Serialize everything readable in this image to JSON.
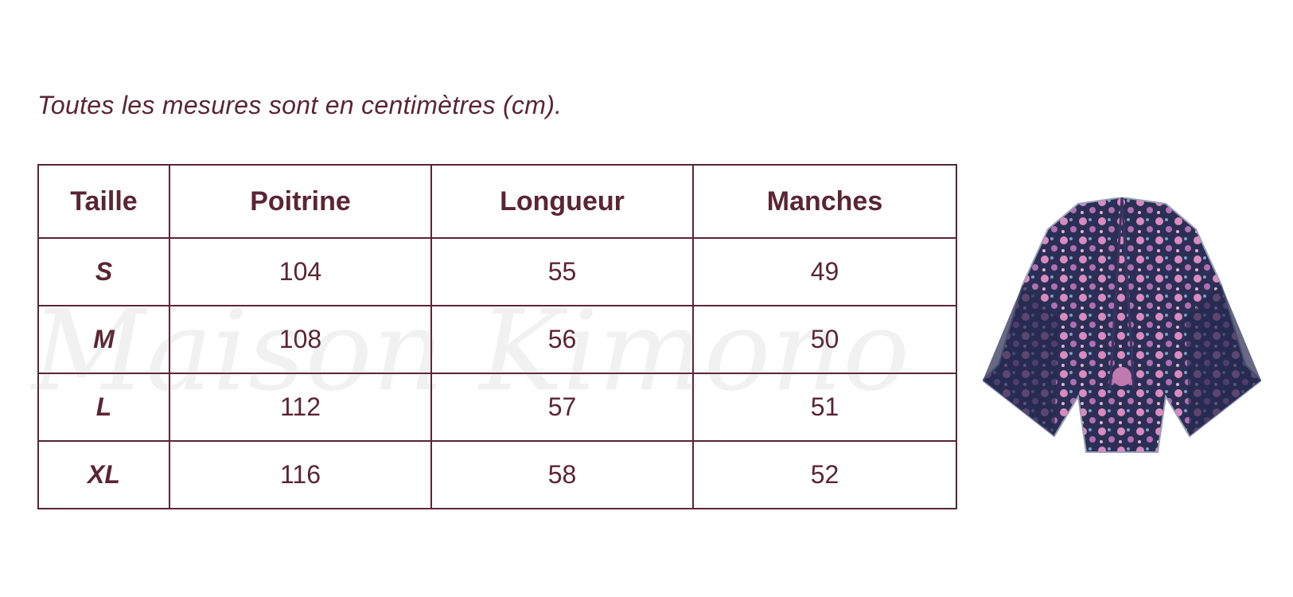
{
  "note": "Toutes les mesures sont en centimètres (cm).",
  "watermark": "Maison Kimono",
  "table": {
    "columns": [
      "Taille",
      "Poitrine",
      "Longueur",
      "Manches"
    ],
    "rows": [
      [
        "S",
        "104",
        "55",
        "49"
      ],
      [
        "M",
        "108",
        "56",
        "50"
      ],
      [
        "L",
        "112",
        "57",
        "51"
      ],
      [
        "XL",
        "116",
        "58",
        "52"
      ]
    ]
  }
}
